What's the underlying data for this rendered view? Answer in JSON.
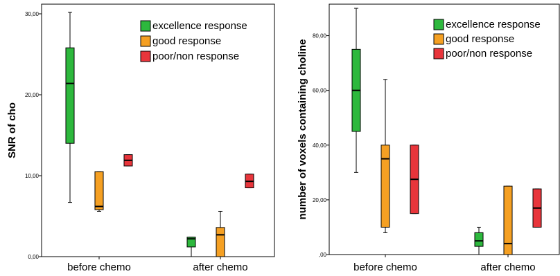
{
  "chart_data": [
    {
      "type": "box",
      "ylabel": "SNR of cho",
      "categories": [
        "before chemo",
        "after chemo"
      ],
      "ylim": [
        0,
        30
      ],
      "yticks": [
        "0,00",
        "10,00",
        "20,00",
        "30,00"
      ],
      "ytick_values": [
        0,
        10,
        20,
        30
      ],
      "legend_position": "top-right",
      "series": [
        {
          "name": "excellence response",
          "color": "#2db83d",
          "boxes": [
            {
              "min": 6.7,
              "q1": 14.0,
              "median": 21.4,
              "q3": 25.8,
              "max": 30.2
            },
            {
              "min": 0.0,
              "q1": 1.2,
              "median": 2.2,
              "q3": 2.4,
              "max": 2.4
            }
          ]
        },
        {
          "name": "good response",
          "color": "#f5a023",
          "boxes": [
            {
              "min": 5.6,
              "q1": 5.8,
              "median": 6.2,
              "q3": 10.5,
              "max": 10.5
            },
            {
              "min": 0.0,
              "q1": 0.0,
              "median": 2.7,
              "q3": 3.6,
              "max": 5.6
            }
          ]
        },
        {
          "name": "poor/non response",
          "color": "#e8353b",
          "boxes": [
            {
              "min": 11.2,
              "q1": 11.2,
              "median": 11.9,
              "q3": 12.6,
              "max": 12.6
            },
            {
              "min": 8.5,
              "q1": 8.5,
              "median": 9.3,
              "q3": 10.2,
              "max": 10.2
            }
          ]
        }
      ]
    },
    {
      "type": "box",
      "ylabel": "number of voxels containing choline",
      "categories": [
        "before chemo",
        "after chemo"
      ],
      "ylim": [
        0,
        90
      ],
      "yticks": [
        ",00",
        "20,00",
        "40,00",
        "60,00",
        "80,00"
      ],
      "ytick_values": [
        0,
        20,
        40,
        60,
        80
      ],
      "legend_position": "top-right",
      "series": [
        {
          "name": "excellence response",
          "color": "#2db83d",
          "boxes": [
            {
              "min": 30,
              "q1": 45,
              "median": 60,
              "q3": 75,
              "max": 90
            },
            {
              "min": 0,
              "q1": 3,
              "median": 5,
              "q3": 8,
              "max": 10
            }
          ]
        },
        {
          "name": "good response",
          "color": "#f5a023",
          "boxes": [
            {
              "min": 8,
              "q1": 10,
              "median": 35,
              "q3": 40,
              "max": 64
            },
            {
              "min": 0,
              "q1": 0,
              "median": 4,
              "q3": 25,
              "max": 25
            }
          ]
        },
        {
          "name": "poor/non response",
          "color": "#e8353b",
          "boxes": [
            {
              "min": 15,
              "q1": 15,
              "median": 27.5,
              "q3": 40,
              "max": 40
            },
            {
              "min": 10,
              "q1": 10,
              "median": 17,
              "q3": 24,
              "max": 24
            }
          ]
        }
      ]
    }
  ]
}
